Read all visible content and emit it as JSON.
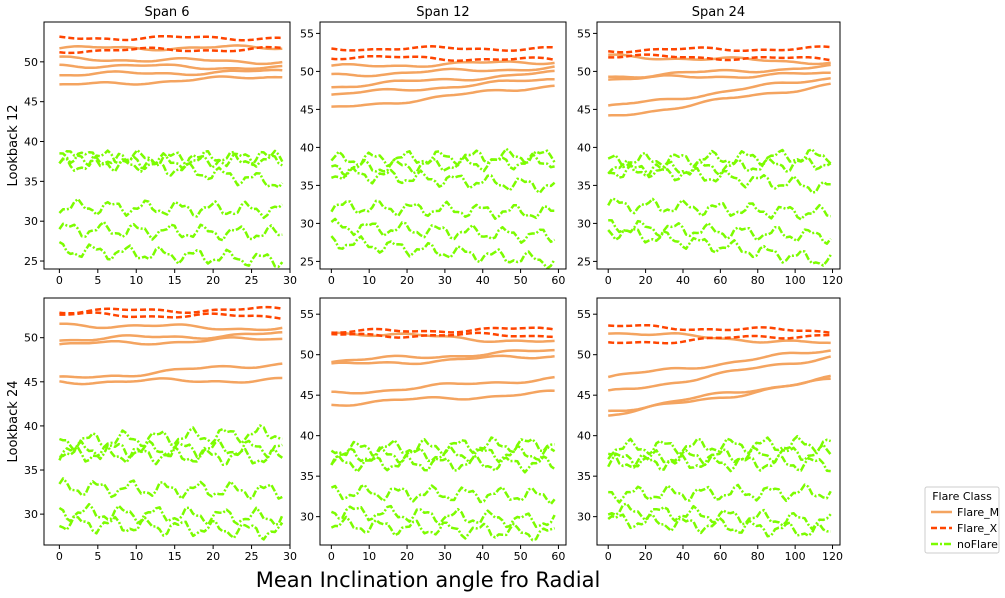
{
  "figure": {
    "supxlabel": "Mean Inclination angle fro Radial",
    "legend": {
      "title": "Flare Class",
      "placement": "right",
      "entries": [
        {
          "name": "Flare_M",
          "color": "#f4a460",
          "style": "solid"
        },
        {
          "name": "Flare_X",
          "color": "#ff4500",
          "style": "dashed"
        },
        {
          "name": "noFlare",
          "color": "#7cfc00",
          "style": "dashdot"
        }
      ]
    }
  },
  "chart_data": [
    {
      "type": "line",
      "title": "Span 6",
      "ylabel": "Lookback 12",
      "xlabel": "",
      "xlim": [
        -2,
        30
      ],
      "ylim": [
        24,
        55
      ],
      "xticks": [
        0,
        5,
        10,
        15,
        20,
        25,
        30
      ],
      "yticks": [
        25,
        30,
        35,
        40,
        45,
        50
      ],
      "x": [
        0,
        29
      ],
      "series": [
        {
          "class": "Flare_M",
          "start": 51.7,
          "end": 51.8
        },
        {
          "class": "Flare_M",
          "start": 50.4,
          "end": 50.0
        },
        {
          "class": "Flare_M",
          "start": 49.6,
          "end": 49.2
        },
        {
          "class": "Flare_M",
          "start": 48.4,
          "end": 48.8
        },
        {
          "class": "Flare_M",
          "start": 47.0,
          "end": 48.2
        },
        {
          "class": "Flare_X",
          "start": 53.0,
          "end": 53.0
        },
        {
          "class": "Flare_X",
          "start": 51.4,
          "end": 51.6
        },
        {
          "class": "noFlare",
          "start": 38.0,
          "end": 37.8
        },
        {
          "class": "noFlare",
          "start": 37.0,
          "end": 38.0
        },
        {
          "class": "noFlare",
          "start": 38.5,
          "end": 34.8
        },
        {
          "class": "noFlare",
          "start": 31.8,
          "end": 31.4
        },
        {
          "class": "noFlare",
          "start": 29.0,
          "end": 28.4
        },
        {
          "class": "noFlare",
          "start": 26.4,
          "end": 25.1
        }
      ]
    },
    {
      "type": "line",
      "title": "Span 12",
      "ylabel": "",
      "xlabel": "",
      "xlim": [
        -3,
        62
      ],
      "ylim": [
        24,
        56.5
      ],
      "xticks": [
        0,
        10,
        20,
        30,
        40,
        50,
        60
      ],
      "yticks": [
        25,
        30,
        35,
        40,
        45,
        50,
        55
      ],
      "x": [
        0,
        59
      ],
      "series": [
        {
          "class": "Flare_M",
          "start": 50.6,
          "end": 51.3
        },
        {
          "class": "Flare_M",
          "start": 49.5,
          "end": 50.5
        },
        {
          "class": "Flare_M",
          "start": 48.0,
          "end": 49.8
        },
        {
          "class": "Flare_M",
          "start": 46.9,
          "end": 49.0
        },
        {
          "class": "Flare_M",
          "start": 45.1,
          "end": 48.2
        },
        {
          "class": "Flare_X",
          "start": 53.0,
          "end": 53.0
        },
        {
          "class": "Flare_X",
          "start": 51.9,
          "end": 51.5
        },
        {
          "class": "noFlare",
          "start": 38.4,
          "end": 38.9
        },
        {
          "class": "noFlare",
          "start": 37.2,
          "end": 38.2
        },
        {
          "class": "noFlare",
          "start": 36.6,
          "end": 34.9
        },
        {
          "class": "noFlare",
          "start": 32.2,
          "end": 31.4
        },
        {
          "class": "noFlare",
          "start": 29.6,
          "end": 28.3
        },
        {
          "class": "noFlare",
          "start": 27.6,
          "end": 25.0
        }
      ]
    },
    {
      "type": "line",
      "title": "Span 24",
      "ylabel": "",
      "xlabel": "",
      "xlim": [
        -6,
        124
      ],
      "ylim": [
        24,
        56.5
      ],
      "xticks": [
        0,
        20,
        40,
        60,
        80,
        100,
        120
      ],
      "yticks": [
        25,
        30,
        35,
        40,
        45,
        50,
        55
      ],
      "x": [
        0,
        119
      ],
      "series": [
        {
          "class": "Flare_M",
          "start": 52.0,
          "end": 51.2
        },
        {
          "class": "Flare_M",
          "start": 49.3,
          "end": 50.6
        },
        {
          "class": "Flare_M",
          "start": 49.0,
          "end": 49.7
        },
        {
          "class": "Flare_M",
          "start": 45.3,
          "end": 49.2
        },
        {
          "class": "Flare_M",
          "start": 44.0,
          "end": 48.3
        },
        {
          "class": "Flare_X",
          "start": 52.8,
          "end": 53.0
        },
        {
          "class": "Flare_X",
          "start": 52.0,
          "end": 51.6
        },
        {
          "class": "noFlare",
          "start": 38.2,
          "end": 38.9
        },
        {
          "class": "noFlare",
          "start": 36.8,
          "end": 38.0
        },
        {
          "class": "noFlare",
          "start": 37.5,
          "end": 34.7
        },
        {
          "class": "noFlare",
          "start": 32.5,
          "end": 31.3
        },
        {
          "class": "noFlare",
          "start": 29.6,
          "end": 28.3
        },
        {
          "class": "noFlare",
          "start": 29.0,
          "end": 25.0
        }
      ]
    },
    {
      "type": "line",
      "title": "",
      "ylabel": "Lookback 24",
      "xlabel": "",
      "xlim": [
        -2,
        30
      ],
      "ylim": [
        26.5,
        54.5
      ],
      "xticks": [
        0,
        5,
        10,
        15,
        20,
        25,
        30
      ],
      "yticks": [
        30,
        35,
        40,
        45,
        50
      ],
      "x": [
        0,
        29
      ],
      "series": [
        {
          "class": "Flare_M",
          "start": 51.5,
          "end": 51.0
        },
        {
          "class": "Flare_M",
          "start": 49.8,
          "end": 50.4
        },
        {
          "class": "Flare_M",
          "start": 49.2,
          "end": 49.9
        },
        {
          "class": "Flare_M",
          "start": 45.3,
          "end": 47.1
        },
        {
          "class": "Flare_M",
          "start": 45.0,
          "end": 45.2
        },
        {
          "class": "Flare_X",
          "start": 53.0,
          "end": 53.2
        },
        {
          "class": "Flare_X",
          "start": 52.6,
          "end": 52.4
        },
        {
          "class": "noFlare",
          "start": 38.2,
          "end": 39.2
        },
        {
          "class": "noFlare",
          "start": 37.2,
          "end": 37.5
        },
        {
          "class": "noFlare",
          "start": 36.9,
          "end": 36.4
        },
        {
          "class": "noFlare",
          "start": 33.0,
          "end": 32.6
        },
        {
          "class": "noFlare",
          "start": 30.2,
          "end": 29.6
        },
        {
          "class": "noFlare",
          "start": 29.0,
          "end": 28.0
        }
      ]
    },
    {
      "type": "line",
      "title": "",
      "ylabel": "",
      "xlabel": "",
      "xlim": [
        -3,
        62
      ],
      "ylim": [
        26.5,
        57
      ],
      "xticks": [
        0,
        10,
        20,
        30,
        40,
        50,
        60
      ],
      "yticks": [
        30,
        35,
        40,
        45,
        50,
        55
      ],
      "x": [
        0,
        59
      ],
      "series": [
        {
          "class": "Flare_M",
          "start": 52.8,
          "end": 51.5
        },
        {
          "class": "Flare_M",
          "start": 49.2,
          "end": 50.5
        },
        {
          "class": "Flare_M",
          "start": 48.7,
          "end": 49.9
        },
        {
          "class": "Flare_M",
          "start": 45.2,
          "end": 47.1
        },
        {
          "class": "Flare_M",
          "start": 43.9,
          "end": 45.3
        },
        {
          "class": "Flare_X",
          "start": 52.8,
          "end": 53.2
        },
        {
          "class": "Flare_X",
          "start": 52.4,
          "end": 52.4
        },
        {
          "class": "noFlare",
          "start": 38.3,
          "end": 39.0
        },
        {
          "class": "noFlare",
          "start": 37.5,
          "end": 37.8
        },
        {
          "class": "noFlare",
          "start": 36.6,
          "end": 36.5
        },
        {
          "class": "noFlare",
          "start": 33.0,
          "end": 32.6
        },
        {
          "class": "noFlare",
          "start": 30.7,
          "end": 29.4
        },
        {
          "class": "noFlare",
          "start": 29.0,
          "end": 27.9
        }
      ]
    },
    {
      "type": "line",
      "title": "",
      "ylabel": "",
      "xlabel": "",
      "xlim": [
        -6,
        124
      ],
      "ylim": [
        26.5,
        57
      ],
      "xticks": [
        0,
        20,
        40,
        60,
        80,
        100,
        120
      ],
      "yticks": [
        30,
        35,
        40,
        45,
        50,
        55
      ],
      "x": [
        0,
        119
      ],
      "series": [
        {
          "class": "Flare_M",
          "start": 52.8,
          "end": 51.3
        },
        {
          "class": "Flare_M",
          "start": 47.2,
          "end": 50.6
        },
        {
          "class": "Flare_M",
          "start": 45.3,
          "end": 49.8
        },
        {
          "class": "Flare_M",
          "start": 43.0,
          "end": 47.1
        },
        {
          "class": "Flare_M",
          "start": 42.6,
          "end": 46.9
        },
        {
          "class": "Flare_X",
          "start": 53.5,
          "end": 52.9
        },
        {
          "class": "Flare_X",
          "start": 51.4,
          "end": 52.5
        },
        {
          "class": "noFlare",
          "start": 38.5,
          "end": 39.0
        },
        {
          "class": "noFlare",
          "start": 37.0,
          "end": 37.9
        },
        {
          "class": "noFlare",
          "start": 36.8,
          "end": 36.5
        },
        {
          "class": "noFlare",
          "start": 32.8,
          "end": 33.0
        },
        {
          "class": "noFlare",
          "start": 30.8,
          "end": 29.4
        },
        {
          "class": "noFlare",
          "start": 29.6,
          "end": 28.1
        }
      ]
    }
  ]
}
